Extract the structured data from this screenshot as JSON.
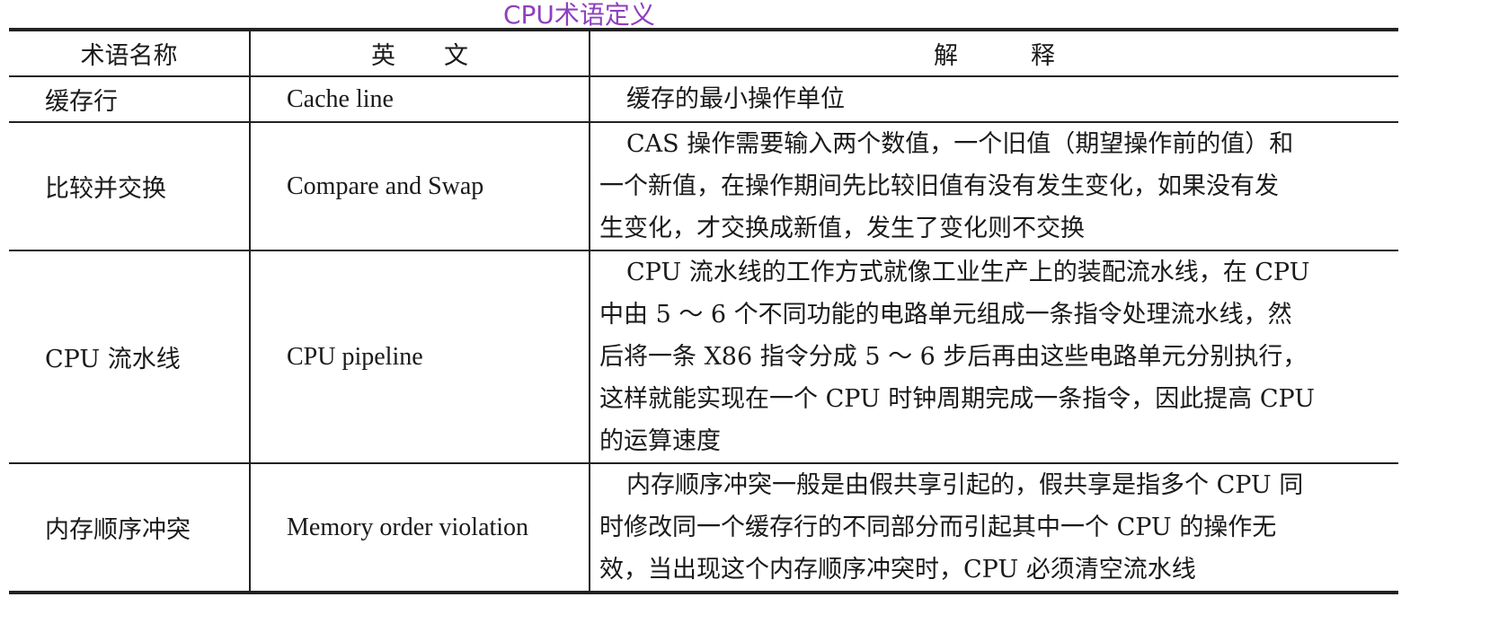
{
  "title": "CPU术语定义",
  "table": {
    "headers": [
      "术语名称",
      "英　　文",
      "解　　　释"
    ],
    "rows": [
      {
        "term": "缓存行",
        "english": "Cache line",
        "lines": [
          "缓存的最小操作单位"
        ]
      },
      {
        "term": "比较并交换",
        "english": "Compare and Swap",
        "lines": [
          "CAS 操作需要输入两个数值，一个旧值（期望操作前的值）和",
          "一个新值，在操作期间先比较旧值有没有发生变化，如果没有发",
          "生变化，才交换成新值，发生了变化则不交换"
        ]
      },
      {
        "term": "CPU 流水线",
        "english": "CPU pipeline",
        "lines": [
          "CPU 流水线的工作方式就像工业生产上的装配流水线，在 CPU",
          "中由 5 ～ 6 个不同功能的电路单元组成一条指令处理流水线，然",
          "后将一条 X86 指令分成 5 ～ 6 步后再由这些电路单元分别执行，",
          "这样就能实现在一个 CPU 时钟周期完成一条指令，因此提高 CPU",
          "的运算速度"
        ]
      },
      {
        "term": "内存顺序冲突",
        "english": "Memory order violation",
        "lines": [
          "内存顺序冲突一般是由假共享引起的，假共享是指多个 CPU 同",
          "时修改同一个缓存行的不同部分而引起其中一个 CPU 的操作无",
          "效，当出现这个内存顺序冲突时，CPU 必须清空流水线"
        ]
      }
    ]
  }
}
